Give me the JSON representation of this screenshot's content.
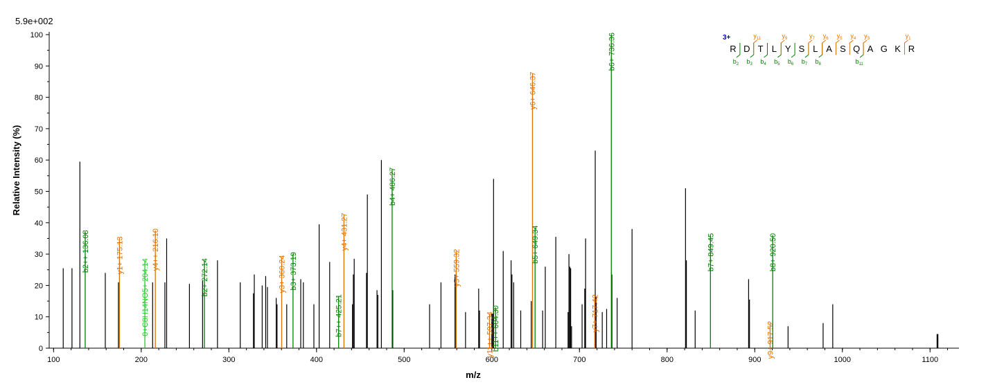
{
  "chart_data": {
    "type": "bar",
    "max_label": "5.9e+002",
    "xlabel": "m/z",
    "ylabel": "Relative Intensity (%)",
    "xlim": [
      95,
      1133
    ],
    "ylim": [
      0,
      100
    ],
    "x_ticks": [
      100,
      200,
      300,
      400,
      500,
      600,
      700,
      800,
      900,
      1000,
      1100
    ],
    "y_ticks": [
      0,
      10,
      20,
      30,
      40,
      50,
      60,
      70,
      80,
      90,
      100
    ],
    "colors": {
      "b_ion": "#008000",
      "y_ion": "#e07000",
      "special": "#22cc22",
      "charge": "#0000cc",
      "peak": "#000000",
      "axis": "#000000"
    },
    "peaks": [
      {
        "mz": 111,
        "i": 25.5
      },
      {
        "mz": 121,
        "i": 25.5
      },
      {
        "mz": 130,
        "i": 59.5
      },
      {
        "mz": 159,
        "i": 24
      },
      {
        "mz": 174,
        "i": 21
      },
      {
        "mz": 213,
        "i": 21
      },
      {
        "mz": 227,
        "i": 21
      },
      {
        "mz": 229,
        "i": 35
      },
      {
        "mz": 255,
        "i": 20.5
      },
      {
        "mz": 270,
        "i": 21.5
      },
      {
        "mz": 287,
        "i": 28
      },
      {
        "mz": 313,
        "i": 21
      },
      {
        "mz": 328,
        "i": 17.5
      },
      {
        "mz": 329,
        "i": 23.5
      },
      {
        "mz": 338,
        "i": 20
      },
      {
        "mz": 342,
        "i": 23
      },
      {
        "mz": 344,
        "i": 19.5
      },
      {
        "mz": 354,
        "i": 16
      },
      {
        "mz": 355,
        "i": 14
      },
      {
        "mz": 366,
        "i": 14
      },
      {
        "mz": 382,
        "i": 22
      },
      {
        "mz": 385,
        "i": 21
      },
      {
        "mz": 397,
        "i": 14
      },
      {
        "mz": 403,
        "i": 39.5
      },
      {
        "mz": 415,
        "i": 27.5
      },
      {
        "mz": 441,
        "i": 14
      },
      {
        "mz": 442,
        "i": 23.5
      },
      {
        "mz": 443,
        "i": 28.5
      },
      {
        "mz": 457,
        "i": 24
      },
      {
        "mz": 458,
        "i": 49
      },
      {
        "mz": 469,
        "i": 18.5
      },
      {
        "mz": 470,
        "i": 17
      },
      {
        "mz": 474,
        "i": 60
      },
      {
        "mz": 487,
        "i": 18.5
      },
      {
        "mz": 529,
        "i": 14
      },
      {
        "mz": 542,
        "i": 21
      },
      {
        "mz": 558,
        "i": 23.5
      },
      {
        "mz": 559,
        "i": 21
      },
      {
        "mz": 570,
        "i": 11.5
      },
      {
        "mz": 585,
        "i": 19
      },
      {
        "mz": 586,
        "i": 12
      },
      {
        "mz": 600,
        "i": 11
      },
      {
        "mz": 601,
        "i": 11
      },
      {
        "mz": 602,
        "i": 54
      },
      {
        "mz": 613,
        "i": 31
      },
      {
        "mz": 622,
        "i": 28
      },
      {
        "mz": 623,
        "i": 23.5
      },
      {
        "mz": 625,
        "i": 21
      },
      {
        "mz": 633,
        "i": 12
      },
      {
        "mz": 645,
        "i": 15
      },
      {
        "mz": 658,
        "i": 12
      },
      {
        "mz": 661,
        "i": 26
      },
      {
        "mz": 673,
        "i": 35.5
      },
      {
        "mz": 687,
        "i": 11.5
      },
      {
        "mz": 688,
        "i": 30
      },
      {
        "mz": 689,
        "i": 26
      },
      {
        "mz": 690,
        "i": 25.5
      },
      {
        "mz": 691,
        "i": 7
      },
      {
        "mz": 703,
        "i": 14
      },
      {
        "mz": 706,
        "i": 19
      },
      {
        "mz": 707,
        "i": 35
      },
      {
        "mz": 718,
        "i": 63
      },
      {
        "mz": 719,
        "i": 16.5
      },
      {
        "mz": 726,
        "i": 11.5
      },
      {
        "mz": 731,
        "i": 12.5
      },
      {
        "mz": 737,
        "i": 23.5
      },
      {
        "mz": 743,
        "i": 16
      },
      {
        "mz": 760,
        "i": 38
      },
      {
        "mz": 821,
        "i": 51
      },
      {
        "mz": 822,
        "i": 28
      },
      {
        "mz": 832,
        "i": 12
      },
      {
        "mz": 893,
        "i": 22
      },
      {
        "mz": 894,
        "i": 15.5
      },
      {
        "mz": 938,
        "i": 7
      },
      {
        "mz": 978,
        "i": 8
      },
      {
        "mz": 989,
        "i": 14
      },
      {
        "mz": 1108,
        "i": 4.5
      },
      {
        "mz": 1109,
        "i": 4.5
      }
    ],
    "annotated_peaks": [
      {
        "label": "b2++ 136.08",
        "mz": 136.08,
        "i": 37,
        "ion": "b"
      },
      {
        "label": "y1+ 175.13",
        "mz": 175.13,
        "i": 35,
        "ion": "y"
      },
      {
        "label": "0+C8H14NO5+ 204.14",
        "mz": 204.14,
        "i": 28,
        "ion": "special"
      },
      {
        "label": "y4++ 216.10",
        "mz": 216.1,
        "i": 37.5,
        "ion": "y"
      },
      {
        "label": "b2+ 272.14",
        "mz": 272.14,
        "i": 28,
        "ion": "b"
      },
      {
        "label": "y3+ 360.24",
        "mz": 360.24,
        "i": 29,
        "ion": "y"
      },
      {
        "label": "b3+ 373.19",
        "mz": 373.19,
        "i": 30,
        "ion": "b"
      },
      {
        "label": "b7++ 425.21",
        "mz": 425.21,
        "i": 16.5,
        "ion": "b"
      },
      {
        "label": "y4+ 431.27",
        "mz": 431.27,
        "i": 42.5,
        "ion": "y"
      },
      {
        "label": "b4+ 486.27",
        "mz": 486.27,
        "i": 57,
        "ion": "b"
      },
      {
        "label": "y5+ 559.32",
        "mz": 559.32,
        "i": 31,
        "ion": "y"
      },
      {
        "label": "y11++ 597.34",
        "mz": 597.34,
        "i": 11,
        "ion": "y"
      },
      {
        "label": "b11++ 604.30",
        "mz": 604.3,
        "i": 13,
        "ion": "b"
      },
      {
        "label": "y6+ 646.37",
        "mz": 646.37,
        "i": 87.5,
        "ion": "y"
      },
      {
        "label": "b5+ 649.34",
        "mz": 649.34,
        "i": 38.5,
        "ion": "b"
      },
      {
        "label": "y7+ 717.42",
        "mz": 717.42,
        "i": 16.5,
        "ion": "y"
      },
      {
        "label": "b6+ 736.36",
        "mz": 736.36,
        "i": 100,
        "ion": "b"
      },
      {
        "label": "b7+ 849.45",
        "mz": 849.45,
        "i": 36,
        "ion": "b"
      },
      {
        "label": "y9+ 917.52",
        "mz": 917.52,
        "i": 8,
        "ion": "y"
      },
      {
        "label": "b8+ 920.50",
        "mz": 920.5,
        "i": 36,
        "ion": "b"
      }
    ],
    "sequence": {
      "charge": "3+",
      "residues": [
        "R",
        "D",
        "T",
        "L",
        "Y",
        "S",
        "L",
        "A",
        "S",
        "Q",
        "A",
        "G",
        "K",
        "R"
      ],
      "b_marks": [
        {
          "after": 1,
          "label": "b",
          "sub": "2"
        },
        {
          "after": 2,
          "label": "b",
          "sub": "3"
        },
        {
          "after": 3,
          "label": "b",
          "sub": "4"
        },
        {
          "after": 4,
          "label": "b",
          "sub": "5"
        },
        {
          "after": 5,
          "label": "b",
          "sub": "6"
        },
        {
          "after": 6,
          "label": "b",
          "sub": "7"
        },
        {
          "after": 7,
          "label": "b",
          "sub": "8"
        },
        {
          "after": 10,
          "label": "b",
          "sub": "11"
        }
      ],
      "y_marks": [
        {
          "after": 2,
          "label": "y",
          "sub": "11"
        },
        {
          "after": 4,
          "label": "y",
          "sub": "9"
        },
        {
          "after": 6,
          "label": "y",
          "sub": "7"
        },
        {
          "after": 7,
          "label": "y",
          "sub": "6"
        },
        {
          "after": 8,
          "label": "y",
          "sub": "5"
        },
        {
          "after": 9,
          "label": "y",
          "sub": "4"
        },
        {
          "after": 10,
          "label": "y",
          "sub": "3"
        },
        {
          "after": 13,
          "label": "y",
          "sub": "1"
        }
      ]
    }
  }
}
